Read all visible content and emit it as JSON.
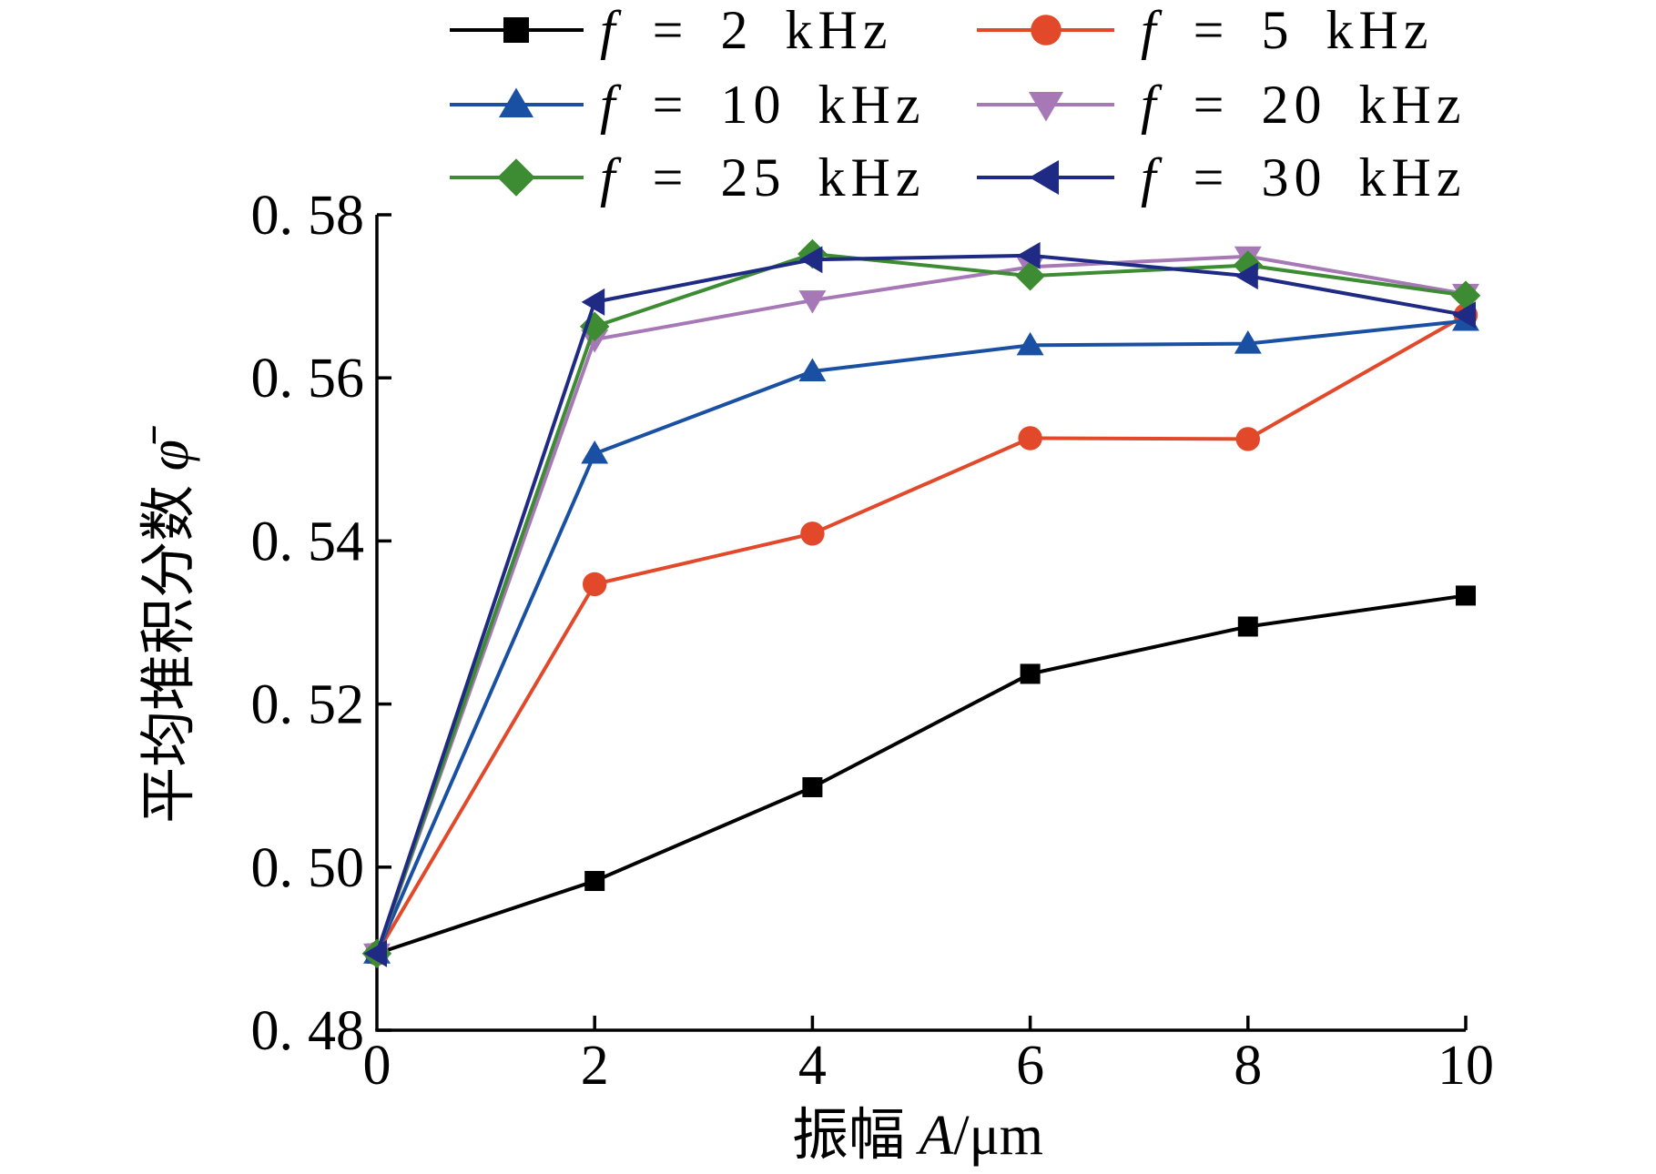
{
  "chart_data": {
    "type": "line",
    "x": [
      0,
      2,
      4,
      6,
      8,
      10
    ],
    "xlim": [
      0,
      10
    ],
    "ylim": [
      0.48,
      0.58
    ],
    "xticks": [
      0,
      2,
      4,
      6,
      8,
      10
    ],
    "yticks": [
      0.48,
      0.5,
      0.52,
      0.54,
      0.56,
      0.58
    ],
    "xlabel": "振幅 A/μm",
    "ylabel": "平均堆积分数 φ̄",
    "grid": false,
    "legend": {
      "placement": "top",
      "columns": 2
    },
    "series": [
      {
        "name": "f = 2 kHz",
        "color": "#000000",
        "marker": "square",
        "values": [
          0.4894,
          0.4983,
          0.5098,
          0.5237,
          0.5295,
          0.5333
        ]
      },
      {
        "name": "f = 5 kHz",
        "color": "#e2492b",
        "marker": "circle",
        "values": [
          0.4894,
          0.5347,
          0.5409,
          0.5526,
          0.5525,
          0.5677
        ]
      },
      {
        "name": "f = 10 kHz",
        "color": "#1a50a3",
        "marker": "triangle-up",
        "values": [
          0.4894,
          0.5507,
          0.5608,
          0.564,
          0.5642,
          0.567
        ]
      },
      {
        "name": "f = 20 kHz",
        "color": "#a778b6",
        "marker": "triangle-down",
        "values": [
          0.4894,
          0.5647,
          0.5695,
          0.5736,
          0.5749,
          0.5703
        ]
      },
      {
        "name": "f = 25 kHz",
        "color": "#3d8b33",
        "marker": "diamond",
        "values": [
          0.4894,
          0.5663,
          0.5752,
          0.5725,
          0.5738,
          0.5701
        ]
      },
      {
        "name": "f = 30 kHz",
        "color": "#1e2a84",
        "marker": "triangle-left",
        "values": [
          0.4894,
          0.5693,
          0.5745,
          0.575,
          0.5725,
          0.5677
        ]
      }
    ]
  }
}
